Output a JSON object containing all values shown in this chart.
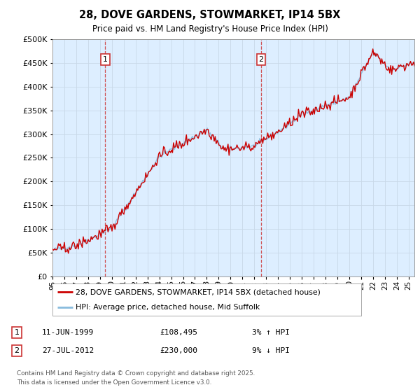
{
  "title": "28, DOVE GARDENS, STOWMARKET, IP14 5BX",
  "subtitle": "Price paid vs. HM Land Registry's House Price Index (HPI)",
  "ylim": [
    0,
    500000
  ],
  "xlim_start": 1995.0,
  "xlim_end": 2025.5,
  "marker1": {
    "x": 1999.44,
    "label": "1",
    "date": "11-JUN-1999",
    "price": "£108,495",
    "note": "3% ↑ HPI"
  },
  "marker2": {
    "x": 2012.57,
    "label": "2",
    "date": "27-JUL-2012",
    "price": "£230,000",
    "note": "9% ↓ HPI"
  },
  "legend_line1": "28, DOVE GARDENS, STOWMARKET, IP14 5BX (detached house)",
  "legend_line2": "HPI: Average price, detached house, Mid Suffolk",
  "footnote1": "Contains HM Land Registry data © Crown copyright and database right 2025.",
  "footnote2": "This data is licensed under the Open Government Licence v3.0.",
  "line_color_red": "#cc0000",
  "line_color_blue": "#88bbdd",
  "background_color": "#ddeeff",
  "plot_bg": "#ffffff",
  "grid_color": "#c8d8e8",
  "dashed_line_color": "#cc3333",
  "box_color": "#cc3333"
}
